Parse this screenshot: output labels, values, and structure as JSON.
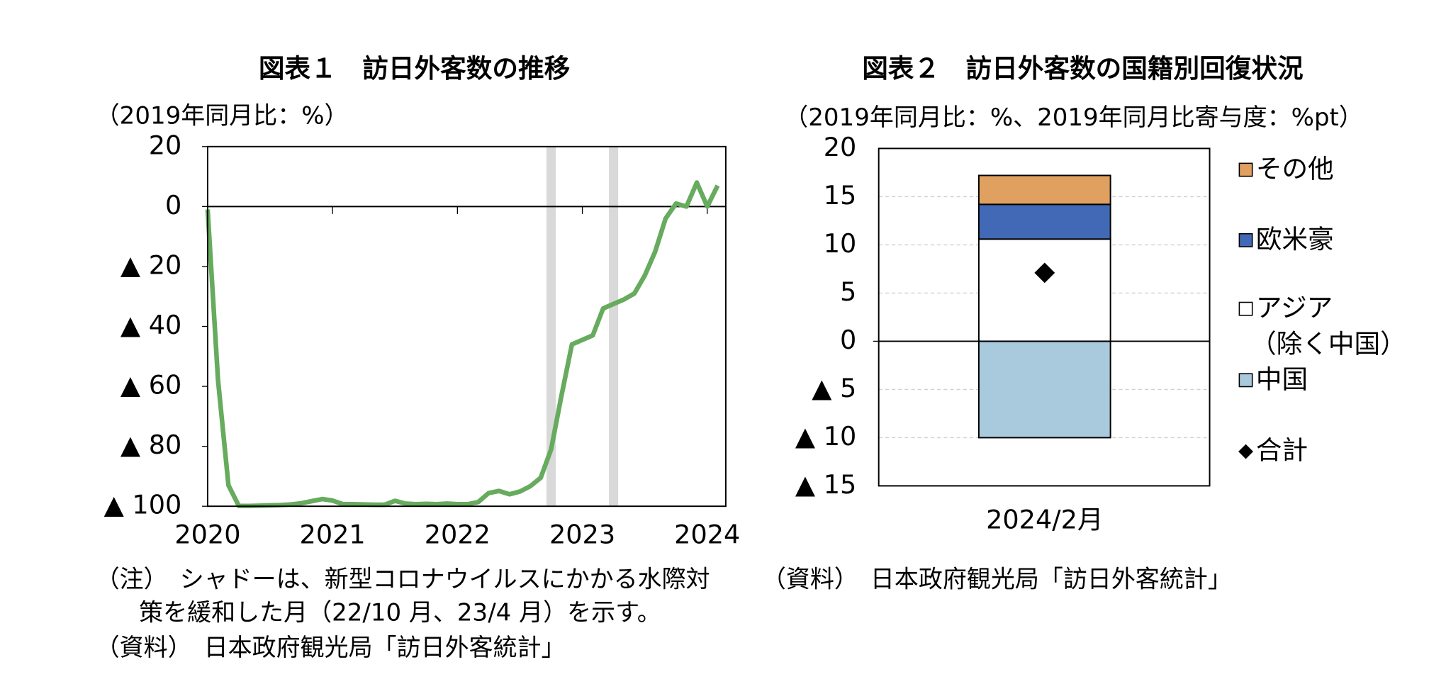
{
  "chart_data": [
    {
      "type": "line",
      "title": "図表１　訪日外客数の推移",
      "unit_label": "（2019年同月比：%）",
      "categories": [
        "2020",
        null,
        null,
        null,
        null,
        null,
        null,
        null,
        null,
        null,
        null,
        null,
        "2021",
        null,
        null,
        null,
        null,
        null,
        null,
        null,
        null,
        null,
        null,
        null,
        "2022",
        null,
        null,
        null,
        null,
        null,
        null,
        null,
        null,
        null,
        null,
        null,
        "2023",
        null,
        null,
        null,
        null,
        null,
        null,
        null,
        null,
        null,
        null,
        null,
        "2024",
        null
      ],
      "values": [
        -1,
        -58,
        -93,
        -99.9,
        -99.9,
        -99.8,
        -99.7,
        -99.6,
        -99.4,
        -99,
        -98.3,
        -97.6,
        -98.1,
        -99.3,
        -99.3,
        -99.4,
        -99.5,
        -99.5,
        -98.2,
        -99.1,
        -99.3,
        -99.2,
        -99.3,
        -99.1,
        -99.3,
        -99.3,
        -98.6,
        -95.6,
        -94.9,
        -96,
        -95.1,
        -93.3,
        -90.5,
        -81,
        -63,
        -46,
        -44.5,
        -43,
        -34,
        -32.5,
        -31,
        -29,
        -23,
        -15,
        -4,
        1,
        0,
        8,
        0,
        7
      ],
      "color": "#66ab5e",
      "shaded": [
        33,
        39
      ],
      "shade_color": "#d9d9d9",
      "ylim": [
        -100,
        20
      ],
      "yticks": [
        20,
        0,
        {
          "value": -20,
          "label": "▲ 20"
        },
        {
          "value": -40,
          "label": "▲ 40"
        },
        {
          "value": -60,
          "label": "▲ 60"
        },
        {
          "value": -80,
          "label": "▲ 80"
        },
        {
          "value": -100,
          "label": "▲ 100"
        }
      ],
      "notes": [
        "（注）　シャドーは、新型コロナウイルスにかかる水際対",
        "策を緩和した月（22/10 月、23/4 月）を示す。"
      ],
      "source": "（資料）　日本政府観光局「訪日外客統計」"
    },
    {
      "type": "stacked_bar",
      "title": "図表２　訪日外客数の国籍別回復状況",
      "unit_label": "（2019年同月比：%、2019年同月比寄与度：%pt）",
      "categories": [
        "2024/2月"
      ],
      "series": [
        {
          "name": "中国",
          "color": "#a9c9dc",
          "values": [
            -10
          ]
        },
        {
          "name": "アジア\n（除く中国）",
          "color": "#ffffff",
          "values": [
            10.6
          ]
        },
        {
          "name": "欧米豪",
          "color": "#4169b5",
          "values": [
            3.6
          ]
        },
        {
          "name": "その他",
          "color": "#e0a060",
          "values": [
            3
          ]
        }
      ],
      "total": {
        "name": "合計",
        "color": "#000000",
        "values": [
          7.1
        ]
      },
      "ylim": [
        -15,
        20
      ],
      "yticks": [
        20,
        15,
        10,
        5,
        0,
        {
          "value": -5,
          "label": "▲ 5"
        },
        {
          "value": -10,
          "label": "▲ 10"
        },
        {
          "value": -15,
          "label": "▲ 15"
        }
      ],
      "grid": true,
      "source": "（資料）　日本政府観光局「訪日外客統計」"
    }
  ]
}
